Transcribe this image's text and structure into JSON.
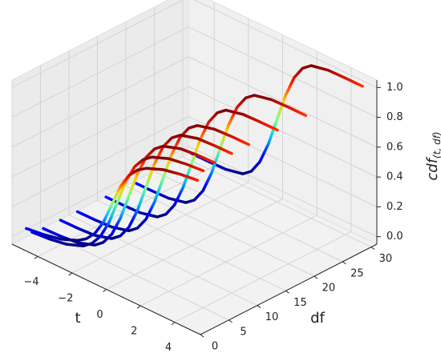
{
  "chart_data": {
    "type": "line3d",
    "x": [
      -5,
      -4,
      -3,
      -2,
      -1.5,
      -1,
      -0.5,
      0,
      0.5,
      1,
      1.5,
      2,
      3,
      4,
      5
    ],
    "series": [
      {
        "df": 1,
        "values": [
          0.063,
          0.078,
          0.102,
          0.148,
          0.187,
          0.25,
          0.352,
          0.5,
          0.648,
          0.75,
          0.813,
          0.852,
          0.898,
          0.922,
          0.937
        ]
      },
      {
        "df": 2,
        "values": [
          0.019,
          0.029,
          0.048,
          0.092,
          0.136,
          0.211,
          0.333,
          0.5,
          0.667,
          0.789,
          0.864,
          0.908,
          0.952,
          0.971,
          0.981
        ]
      },
      {
        "df": 4,
        "values": [
          0.004,
          0.008,
          0.02,
          0.058,
          0.104,
          0.187,
          0.322,
          0.5,
          0.678,
          0.813,
          0.896,
          0.942,
          0.98,
          0.992,
          0.996
        ]
      },
      {
        "df": 7,
        "values": [
          0.001,
          0.003,
          0.01,
          0.043,
          0.089,
          0.175,
          0.316,
          0.5,
          0.684,
          0.825,
          0.911,
          0.957,
          0.99,
          0.997,
          0.999
        ]
      },
      {
        "df": 10,
        "values": [
          0,
          0.001,
          0.007,
          0.037,
          0.082,
          0.17,
          0.314,
          0.5,
          0.686,
          0.83,
          0.918,
          0.963,
          0.993,
          0.999,
          1
        ]
      },
      {
        "df": 15,
        "values": [
          0,
          0.001,
          0.005,
          0.032,
          0.077,
          0.167,
          0.312,
          0.5,
          0.688,
          0.833,
          0.923,
          0.968,
          0.995,
          0.999,
          1
        ]
      },
      {
        "df": 20,
        "values": [
          0,
          0,
          0.004,
          0.03,
          0.075,
          0.165,
          0.311,
          0.5,
          0.689,
          0.835,
          0.925,
          0.97,
          0.996,
          1,
          1
        ]
      },
      {
        "df": 30,
        "values": [
          0,
          0,
          0.003,
          0.027,
          0.072,
          0.163,
          0.31,
          0.5,
          0.69,
          0.837,
          0.928,
          0.973,
          0.997,
          1,
          1
        ]
      }
    ],
    "colormap": [
      "#00007f",
      "#0000ff",
      "#00bfff",
      "#7fff7f",
      "#ffd000",
      "#ff2000",
      "#7f0000"
    ],
    "xlim": [
      -5.5,
      5.5
    ],
    "ylim": [
      0,
      31
    ],
    "zlim": [
      -0.05,
      1.05
    ],
    "xticks": [
      {
        "value": -4,
        "label": "−4"
      },
      {
        "value": -2,
        "label": "−2"
      },
      0,
      2,
      4
    ],
    "yticks": [
      0,
      5,
      10,
      15,
      20,
      25,
      30
    ],
    "zticks": [
      {
        "value": 0,
        "label": "0.0"
      },
      {
        "value": 0.2,
        "label": "0.2"
      },
      {
        "value": 0.4,
        "label": "0.4"
      },
      {
        "value": 0.6,
        "label": "0.6"
      },
      {
        "value": 0.8,
        "label": "0.8"
      },
      {
        "value": 1,
        "label": "1.0"
      }
    ],
    "xlabel": "t",
    "ylabel": "df",
    "zlabel": "cdf",
    "zlabel_subscript": "(t, df)",
    "grid": true
  }
}
